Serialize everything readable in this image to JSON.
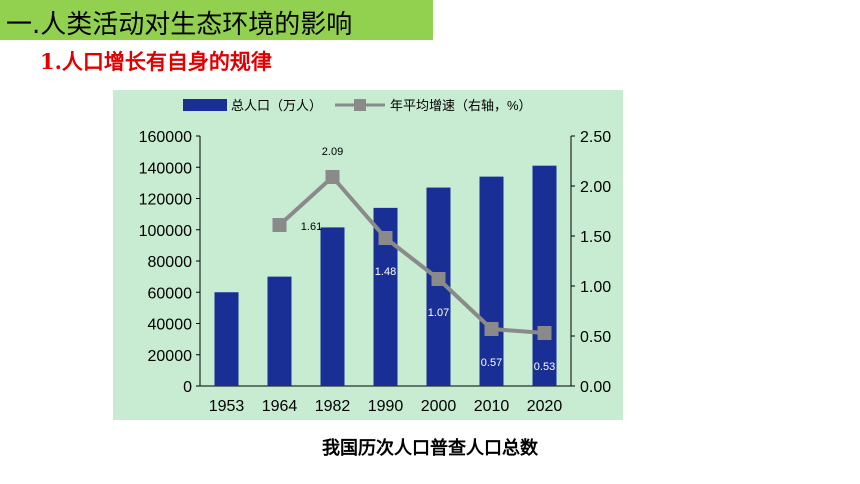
{
  "header": {
    "section_title": "一.人类活动对生态环境的影响",
    "subsection_title": "1.人口增长有自身的规律"
  },
  "caption": "我国历次人口普查人口总数",
  "colors": {
    "title_bg": "#92D050",
    "subtitle_text": "#E00000",
    "plot_bg": "#C7ECD2",
    "bar": "#1A2F96",
    "line": "#8A8A8A"
  },
  "chart_data": {
    "type": "bar",
    "categories": [
      "1953",
      "1964",
      "1982",
      "1990",
      "2000",
      "2010",
      "2020"
    ],
    "series": [
      {
        "name": "总人口（万人）",
        "type": "bar",
        "axis": "left",
        "values": [
          60000,
          70000,
          101500,
          114000,
          127000,
          134000,
          141000
        ]
      },
      {
        "name": "年平均增速（右轴，%）",
        "type": "line",
        "axis": "right",
        "values": [
          null,
          1.61,
          2.09,
          1.48,
          1.07,
          0.57,
          0.53
        ],
        "data_labels": [
          null,
          "1.61",
          "2.09",
          "1.48",
          "1.07",
          "0.57",
          "0.53"
        ]
      }
    ],
    "y_left": {
      "range": [
        0,
        160000
      ],
      "ticks": [
        "0",
        "20000",
        "40000",
        "60000",
        "80000",
        "100000",
        "120000",
        "140000",
        "160000"
      ]
    },
    "y_right": {
      "range": [
        0,
        2.5
      ],
      "ticks": [
        "0.00",
        "0.50",
        "1.00",
        "1.50",
        "2.00",
        "2.50"
      ]
    },
    "grid": false,
    "legend_position": "top"
  }
}
